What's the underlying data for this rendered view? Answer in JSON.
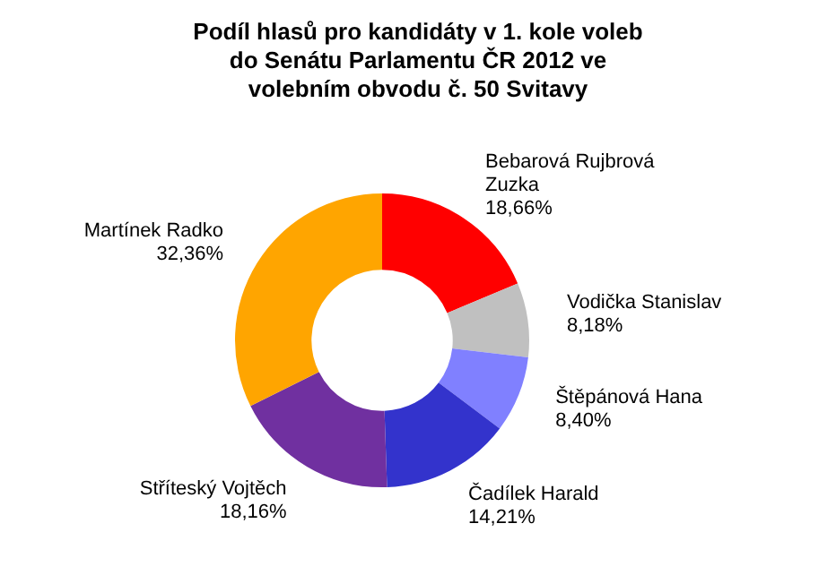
{
  "chart_data": {
    "type": "donut",
    "title": "Podíl hlasů pro kandidáty v 1. kole voleb do Senátu Parlamentu ČR 2012 ve volebním obvodu č. 50 Svitavy",
    "categories": [
      "Bebarová Rujbrová Zuzka",
      "Vodička Stanislav",
      "Štěpánová Hana",
      "Čadílek Harald",
      "Stříteský Vojtěch",
      "Martínek Radko"
    ],
    "values": [
      18.66,
      8.18,
      8.4,
      14.21,
      18.16,
      32.36
    ],
    "colors": [
      "#ff0000",
      "#c0c0c0",
      "#8080ff",
      "#3333cc",
      "#7030a0",
      "#ffa500"
    ],
    "value_labels": [
      "18,66%",
      "8,18%",
      "8,40%",
      "14,21%",
      "18,16%",
      "32,36%"
    ],
    "legend": false
  }
}
